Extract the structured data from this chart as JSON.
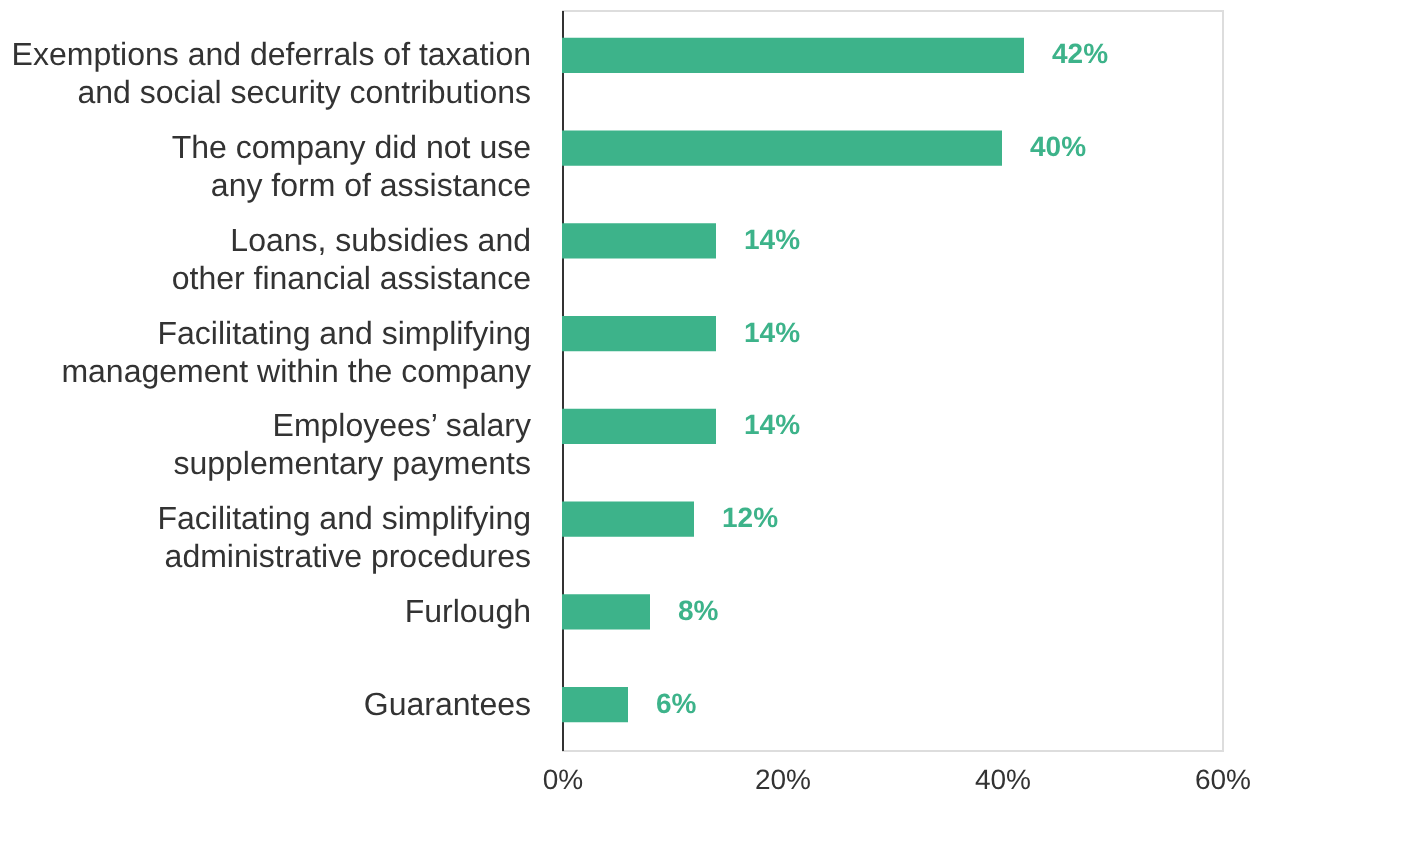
{
  "chart_data": {
    "type": "bar",
    "orientation": "horizontal",
    "categories": [
      "Exemptions and deferrals of taxation\nand social security contributions",
      "The company did not use\nany form of assistance",
      "Loans, subsidies and\nother financial assistance",
      "Facilitating and simplifying\nmanagement within the company",
      "Employees’ salary\nsupplementary payments",
      "Facilitating and simplifying\nadministrative procedures",
      "Furlough",
      "Guarantees"
    ],
    "values": [
      42,
      40,
      14,
      14,
      14,
      12,
      8,
      6
    ],
    "value_labels": [
      "42%",
      "40%",
      "14%",
      "14%",
      "14%",
      "12%",
      "8%",
      "6%"
    ],
    "color": "#3db38a",
    "xlim": [
      0,
      60
    ],
    "xticks": [
      {
        "value": 0,
        "label": "0%"
      },
      {
        "value": 20,
        "label": "20%"
      },
      {
        "value": 40,
        "label": "40%"
      },
      {
        "value": 60,
        "label": "60%"
      }
    ],
    "grid": false
  }
}
